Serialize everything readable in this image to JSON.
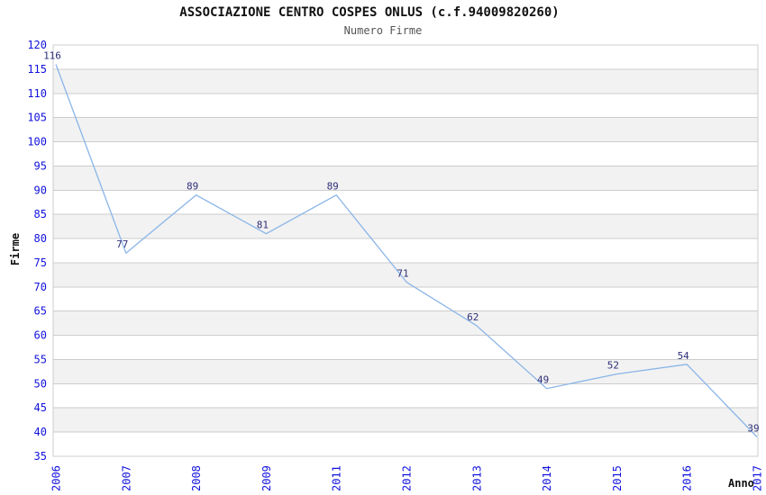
{
  "chart_data": {
    "type": "line",
    "title": "ASSOCIAZIONE CENTRO COSPES ONLUS (c.f.94009820260)",
    "subtitle": "Numero Firme",
    "xlabel": "Anno",
    "ylabel": "Firme",
    "categories": [
      "2006",
      "2007",
      "2008",
      "2009",
      "2011",
      "2012",
      "2013",
      "2014",
      "2015",
      "2016",
      "2017"
    ],
    "values": [
      116,
      77,
      89,
      81,
      89,
      71,
      62,
      49,
      52,
      54,
      39
    ],
    "ylim": [
      35,
      120
    ],
    "ytick_step": 5,
    "grid": true,
    "banding": "alternating-horizontal-stripes",
    "legend": "none",
    "colors": {
      "line": "#8ab5e8",
      "tick_label": "#1212dd",
      "data_label": "#2e2e78",
      "band_fill": "#f2f2f2",
      "gridline": "#cccccc",
      "plot_border": "#cccccc",
      "title": "#111111",
      "subtitle": "#555555",
      "axis_title": "#111111",
      "background": "#ffffff"
    }
  }
}
